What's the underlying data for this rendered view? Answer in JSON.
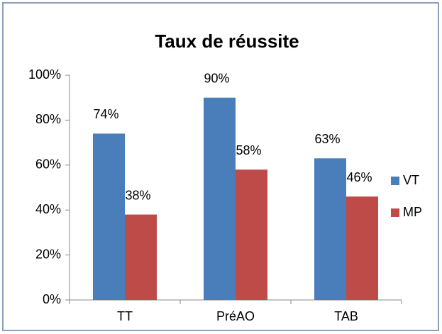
{
  "chart_data": {
    "type": "bar",
    "title": "Taux de réussite",
    "categories": [
      "TT",
      "PréAO",
      "TAB"
    ],
    "series": [
      {
        "name": "VT",
        "color": "#4a7ebb",
        "values": [
          74,
          90,
          63
        ],
        "value_labels": [
          "74%",
          "90%",
          "63%"
        ]
      },
      {
        "name": "MP",
        "color": "#be4b48",
        "values": [
          38,
          58,
          46
        ],
        "value_labels": [
          "38%",
          "58%",
          "46%"
        ]
      }
    ],
    "ylim": [
      0,
      100
    ],
    "yticks": [
      {
        "value": 0,
        "label": "0%"
      },
      {
        "value": 20,
        "label": "20%"
      },
      {
        "value": 40,
        "label": "40%"
      },
      {
        "value": 60,
        "label": "60%"
      },
      {
        "value": 80,
        "label": "80%"
      },
      {
        "value": 100,
        "label": "100%"
      }
    ],
    "grid": false,
    "legend": "right"
  }
}
